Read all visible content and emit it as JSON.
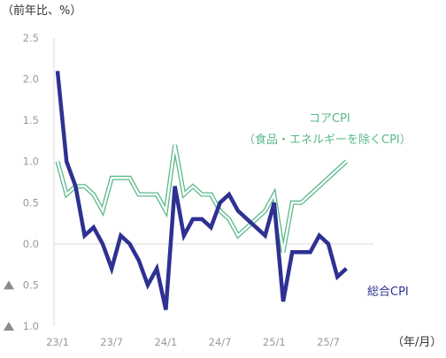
{
  "chart_data": {
    "type": "line",
    "unit_label": "（前年比、%）",
    "x_unit_label": "（年/月）",
    "x_ticks": [
      "23/1",
      "23/7",
      "24/1",
      "24/7",
      "25/1",
      "25/7"
    ],
    "y_ticks": [
      {
        "value": 2.5,
        "text": "2.5",
        "negative": false
      },
      {
        "value": 2.0,
        "text": "2.0",
        "negative": false
      },
      {
        "value": 1.5,
        "text": "1.5",
        "negative": false
      },
      {
        "value": 1.0,
        "text": "1.0",
        "negative": false
      },
      {
        "value": 0.5,
        "text": "0.5",
        "negative": false
      },
      {
        "value": 0.0,
        "text": "0.0",
        "negative": false
      },
      {
        "value": -0.5,
        "text": "0.5",
        "negative": true
      },
      {
        "value": -1.0,
        "text": "1.0",
        "negative": true
      }
    ],
    "ylim": [
      -1.0,
      2.5
    ],
    "grid": false,
    "zero_line": true,
    "x": [
      "23/1",
      "23/2",
      "23/3",
      "23/4",
      "23/5",
      "23/6",
      "23/7",
      "23/8",
      "23/9",
      "23/10",
      "23/11",
      "23/12",
      "24/1",
      "24/2",
      "24/3",
      "24/4",
      "24/5",
      "24/6",
      "24/7",
      "24/8",
      "24/9",
      "24/10",
      "24/11",
      "24/12",
      "25/1",
      "25/2",
      "25/3",
      "25/4",
      "25/5",
      "25/6",
      "25/7",
      "25/8",
      "25/9",
      "25/10",
      "25/11",
      "25/12"
    ],
    "series": [
      {
        "name": "総合CPI",
        "color": "#2e3192",
        "style": "thick",
        "values": [
          2.1,
          1.0,
          0.7,
          0.1,
          0.2,
          0.0,
          -0.3,
          0.1,
          0.0,
          -0.2,
          -0.5,
          -0.3,
          -0.8,
          0.7,
          0.1,
          0.3,
          0.3,
          0.2,
          0.5,
          0.6,
          0.4,
          0.3,
          0.2,
          0.1,
          0.5,
          -0.7,
          -0.1,
          -0.1,
          -0.1,
          0.1,
          0.0,
          -0.4,
          -0.3,
          null,
          null,
          null
        ]
      },
      {
        "name": "コアCPI\n（食品・エネルギーを除くCPI）",
        "name_lines": [
          "コアCPI",
          "（食品・エネルギーを除くCPI）"
        ],
        "color": "#5bb88a",
        "style": "double",
        "values": [
          1.0,
          0.6,
          0.7,
          0.7,
          0.6,
          0.4,
          0.8,
          0.8,
          0.8,
          0.6,
          0.6,
          0.6,
          0.4,
          1.2,
          0.6,
          0.7,
          0.6,
          0.6,
          0.4,
          0.3,
          0.1,
          0.2,
          0.3,
          0.4,
          0.6,
          -0.1,
          0.5,
          0.5,
          0.6,
          0.7,
          0.8,
          0.9,
          1.0,
          null,
          null,
          null
        ]
      }
    ]
  }
}
